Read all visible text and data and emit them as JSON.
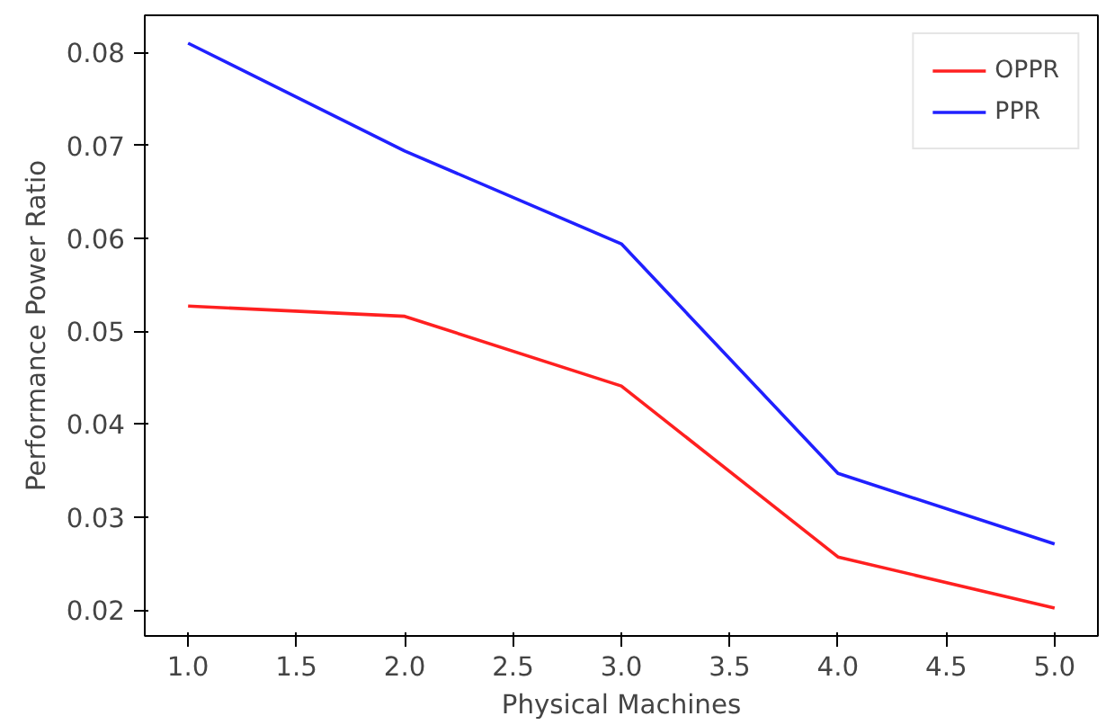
{
  "chart_data": {
    "type": "line",
    "xlabel": "Physical Machines",
    "ylabel": "Performance Power Ratio",
    "x": [
      1,
      2,
      3,
      4,
      5
    ],
    "series": [
      {
        "name": "OPPR",
        "color": "#ff2020",
        "values": [
          0.0527,
          0.0516,
          0.0441,
          0.0257,
          0.0202
        ]
      },
      {
        "name": "PPR",
        "color": "#2020ff",
        "values": [
          0.081,
          0.0694,
          0.0594,
          0.0347,
          0.0271
        ]
      }
    ],
    "xlim": [
      0.8,
      5.2
    ],
    "ylim": [
      0.0172,
      0.084
    ],
    "xticks": [
      {
        "value": 1,
        "label": "1.0"
      },
      {
        "value": 1.5,
        "label": "1.5"
      },
      {
        "value": 2,
        "label": "2.0"
      },
      {
        "value": 2.5,
        "label": "2.5"
      },
      {
        "value": 3,
        "label": "3.0"
      },
      {
        "value": 3.5,
        "label": "3.5"
      },
      {
        "value": 4,
        "label": "4.0"
      },
      {
        "value": 4.5,
        "label": "4.5"
      },
      {
        "value": 5,
        "label": "5.0"
      }
    ],
    "yticks": [
      {
        "value": 0.02,
        "label": "0.02"
      },
      {
        "value": 0.03,
        "label": "0.03"
      },
      {
        "value": 0.04,
        "label": "0.04"
      },
      {
        "value": 0.05,
        "label": "0.05"
      },
      {
        "value": 0.06,
        "label": "0.06"
      },
      {
        "value": 0.07,
        "label": "0.07"
      },
      {
        "value": 0.08,
        "label": "0.08"
      }
    ],
    "grid": false,
    "legend": "top right"
  }
}
